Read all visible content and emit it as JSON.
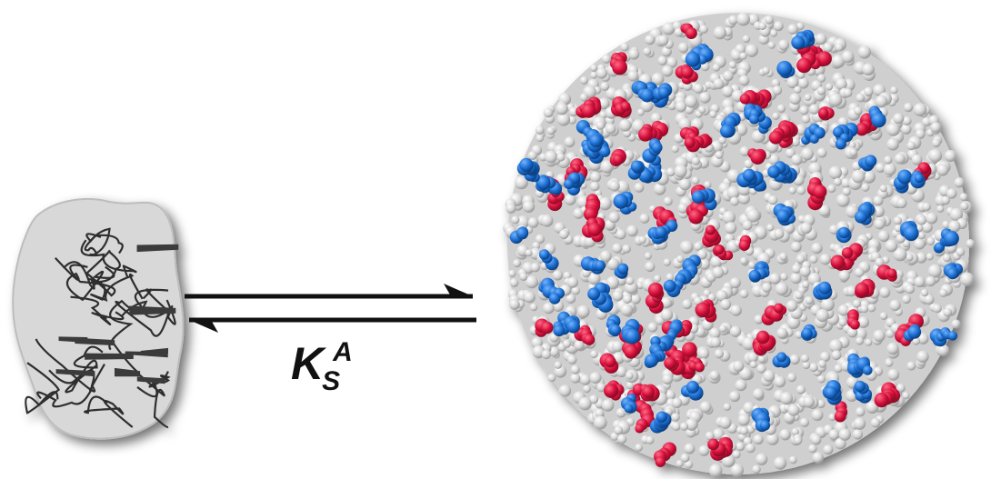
{
  "equilibrium_label": {
    "main": "K",
    "subscript": "S",
    "superscript": "A"
  },
  "colors": {
    "background": "#ffffff",
    "arrow": "#111111",
    "protein_ribbon": "#2f2f2f",
    "protein_surface": "#d8d8d8",
    "particle_base": "#e6e6e6",
    "particle_red": "#d8123d",
    "particle_blue": "#1c6fd1",
    "shadow": "#8a8a8a"
  }
}
